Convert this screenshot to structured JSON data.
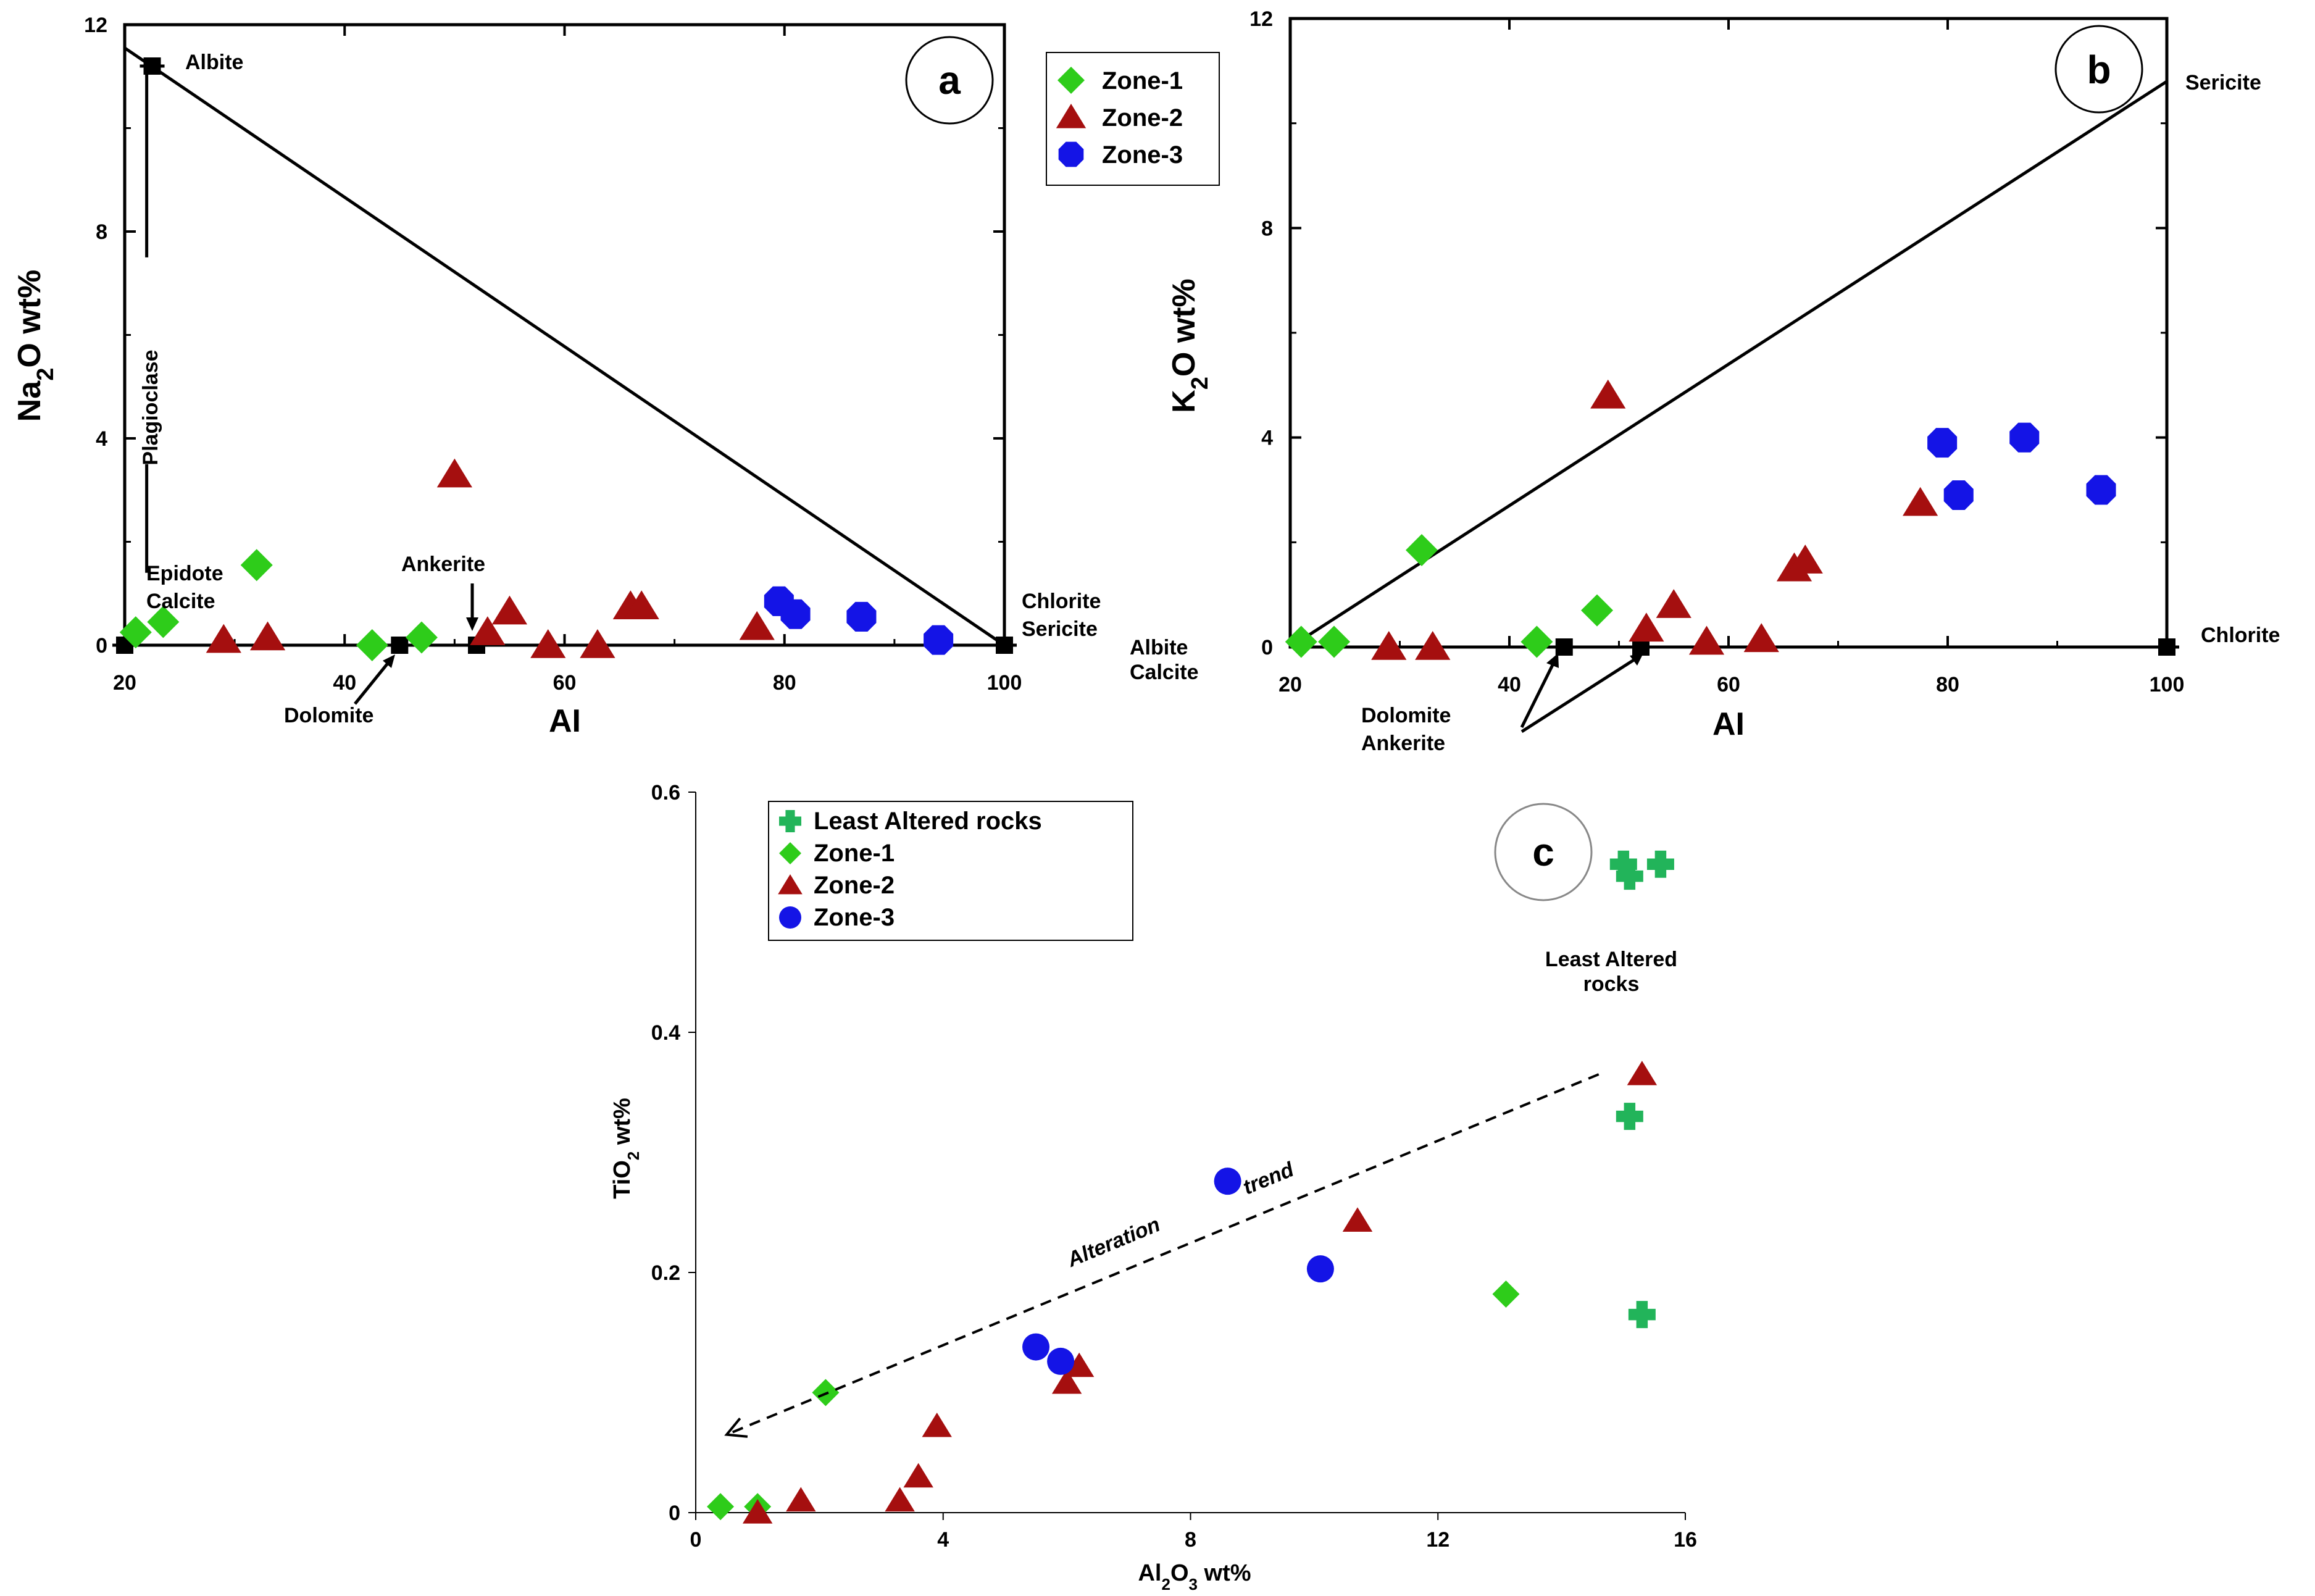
{
  "colors": {
    "zone1": "#2ecc1a",
    "zone2": "#a50f0f",
    "zone3": "#1414e6",
    "least": "#22b45a",
    "axis": "#000000"
  },
  "chart_data": [
    {
      "panel": "a",
      "type": "scatter",
      "xlabel": "AI",
      "ylabel": "Na2O wt%",
      "xlim": [
        20,
        100
      ],
      "ylim": [
        0,
        12
      ],
      "xticks": [
        "20",
        "40",
        "60",
        "80",
        "100"
      ],
      "yticks": [
        "0",
        "4",
        "8",
        "12"
      ],
      "legend": [
        "Zone-1",
        "Zone-2",
        "Zone-3"
      ],
      "series": [
        {
          "name": "Zone-1",
          "marker": "diamond",
          "x": [
            21,
            23.5,
            32,
            42.5,
            47
          ],
          "y": [
            0.25,
            0.45,
            1.55,
            0,
            0.15
          ]
        },
        {
          "name": "Zone-2",
          "marker": "triangle",
          "x": [
            29,
            33,
            50,
            53,
            55,
            58.5,
            63,
            66,
            67,
            77.5
          ],
          "y": [
            0.1,
            0.15,
            3.3,
            0.25,
            0.65,
            0,
            0,
            0.75,
            0.75,
            0.35
          ]
        },
        {
          "name": "Zone-3",
          "marker": "octagon",
          "x": [
            79.5,
            81,
            87,
            94
          ],
          "y": [
            0.85,
            0.6,
            0.55,
            0.1
          ]
        }
      ],
      "minerals": [
        {
          "name": "Albite",
          "x": 22.5,
          "y": 11.2
        },
        {
          "name": "Epidote Calcite",
          "x": 20,
          "y": 0
        },
        {
          "name": "Dolomite",
          "x": 45,
          "y": 0
        },
        {
          "name": "Ankerite",
          "x": 52,
          "y": 0
        },
        {
          "name": "Chlorite Sericite",
          "x": 100,
          "y": 0
        }
      ],
      "annotations": {
        "albite": "Albite",
        "plagioclase": "Plagioclase",
        "epidote": "Epidote",
        "calcite": "Calcite",
        "ankerite": "Ankerite",
        "dolomite": "Dolomite",
        "chlorite": "Chlorite",
        "sericite": "Sericite",
        "albite2": "Albite",
        "calcite2": "Calcite"
      }
    },
    {
      "panel": "b",
      "type": "scatter",
      "xlabel": "AI",
      "ylabel": "K2O wt%",
      "xlim": [
        20,
        100
      ],
      "ylim": [
        0,
        12
      ],
      "xticks": [
        "20",
        "40",
        "60",
        "80",
        "100"
      ],
      "yticks": [
        "0",
        "4",
        "8",
        "12"
      ],
      "series": [
        {
          "name": "Zone-1",
          "marker": "diamond",
          "x": [
            21,
            24,
            32,
            42.5,
            48
          ],
          "y": [
            0.1,
            0.1,
            1.85,
            0.1,
            0.7
          ]
        },
        {
          "name": "Zone-2",
          "marker": "triangle",
          "x": [
            29,
            33,
            49,
            52.5,
            55,
            58,
            63,
            66,
            67,
            77.5
          ],
          "y": [
            0,
            0,
            4.8,
            0.35,
            0.8,
            0.1,
            0.15,
            1.5,
            1.65,
            2.75
          ]
        },
        {
          "name": "Zone-3",
          "marker": "octagon",
          "x": [
            79.5,
            81,
            87,
            94
          ],
          "y": [
            3.9,
            2.9,
            4.0,
            3.0
          ]
        }
      ],
      "minerals": [
        {
          "name": "Dolomite",
          "x": 45,
          "y": 0
        },
        {
          "name": "Ankerite",
          "x": 52,
          "y": 0
        },
        {
          "name": "Chlorite",
          "x": 100,
          "y": 0
        }
      ],
      "annotations": {
        "sericite": "Sericite",
        "chlorite": "Chlorite",
        "dolomite": "Dolomite",
        "ankerite": "Ankerite"
      }
    },
    {
      "panel": "c",
      "type": "scatter",
      "xlabel": "Al2O3 wt%",
      "ylabel": "TiO2 wt%",
      "xlim": [
        0,
        16
      ],
      "ylim": [
        0,
        0.6
      ],
      "xticks": [
        "0",
        "4",
        "8",
        "12",
        "16"
      ],
      "yticks": [
        "0",
        "0.2",
        "0.4",
        "0.6"
      ],
      "legend": [
        "Least Altered rocks",
        "Zone-1",
        "Zone-2",
        "Zone-3"
      ],
      "series": [
        {
          "name": "Least Altered rocks",
          "marker": "plus",
          "x": [
            15.0,
            15.1,
            15.6,
            15.1,
            15.3
          ],
          "y": [
            0.54,
            0.53,
            0.54,
            0.33,
            0.165
          ]
        },
        {
          "name": "Zone-1",
          "marker": "diamond",
          "x": [
            0.4,
            1.0,
            2.1,
            13.1
          ],
          "y": [
            0.005,
            0.005,
            0.1,
            0.182
          ]
        },
        {
          "name": "Zone-2",
          "marker": "triangle",
          "x": [
            1.0,
            1.7,
            3.3,
            3.6,
            3.9,
            6.0,
            6.2,
            10.7,
            15.3
          ],
          "y": [
            0.0,
            0.01,
            0.01,
            0.03,
            0.072,
            0.108,
            0.122,
            0.243,
            0.365
          ]
        },
        {
          "name": "Zone-3",
          "marker": "circle",
          "x": [
            5.5,
            5.9,
            8.6,
            10.1
          ],
          "y": [
            0.138,
            0.126,
            0.276,
            0.203
          ]
        }
      ],
      "trend": {
        "label1": "Alteration",
        "label2": "trend",
        "from": [
          14.6,
          0.365
        ],
        "to": [
          0.5,
          0.065
        ]
      },
      "annotations": {
        "least1": "Least Altered",
        "least2": "rocks"
      }
    }
  ]
}
